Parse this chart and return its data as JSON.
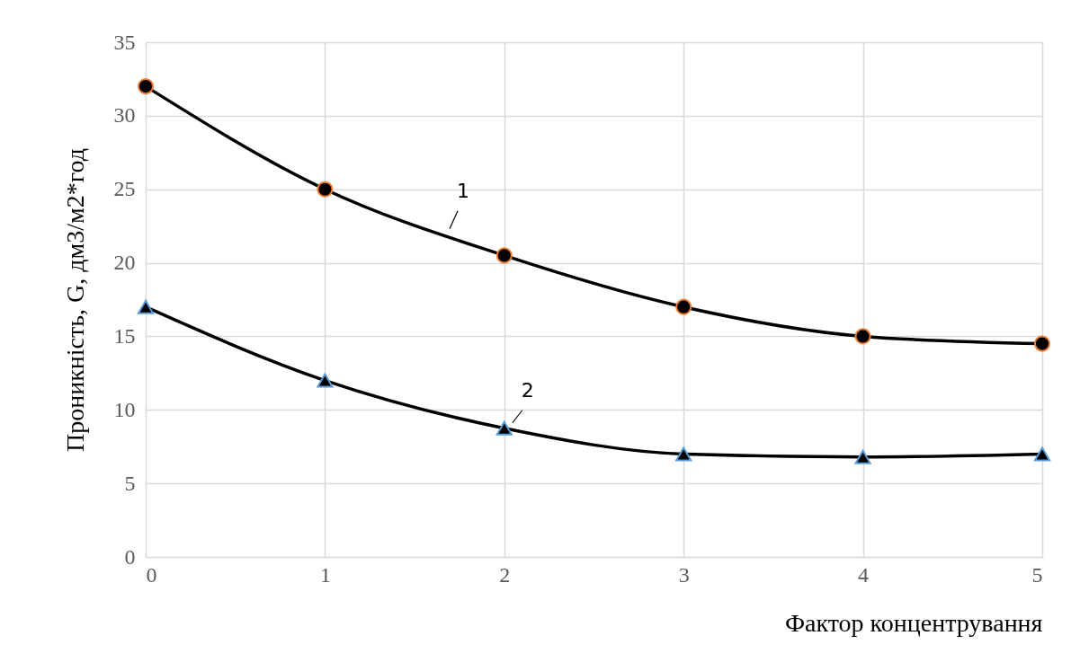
{
  "chart_data": {
    "type": "line",
    "xlabel": "Фактор концентрування",
    "ylabel": "Проникність, G, дм3/м2*год",
    "x": [
      0,
      1,
      2,
      3,
      4,
      5
    ],
    "series": [
      {
        "name": "1",
        "color": "#000000",
        "marker": "circle",
        "values": [
          32,
          25,
          20.5,
          17,
          15,
          14.5
        ]
      },
      {
        "name": "2",
        "color": "#000000",
        "marker": "triangle",
        "values": [
          17,
          12,
          8.75,
          7,
          6.8,
          7
        ]
      }
    ],
    "xlim": [
      0,
      5
    ],
    "xticks": [
      0,
      1,
      2,
      3,
      4,
      5
    ],
    "ylim": [
      0,
      35
    ],
    "yticks": [
      0,
      5,
      10,
      15,
      20,
      25,
      30,
      35
    ],
    "grid": true,
    "legend": false,
    "line_style": "solid"
  }
}
